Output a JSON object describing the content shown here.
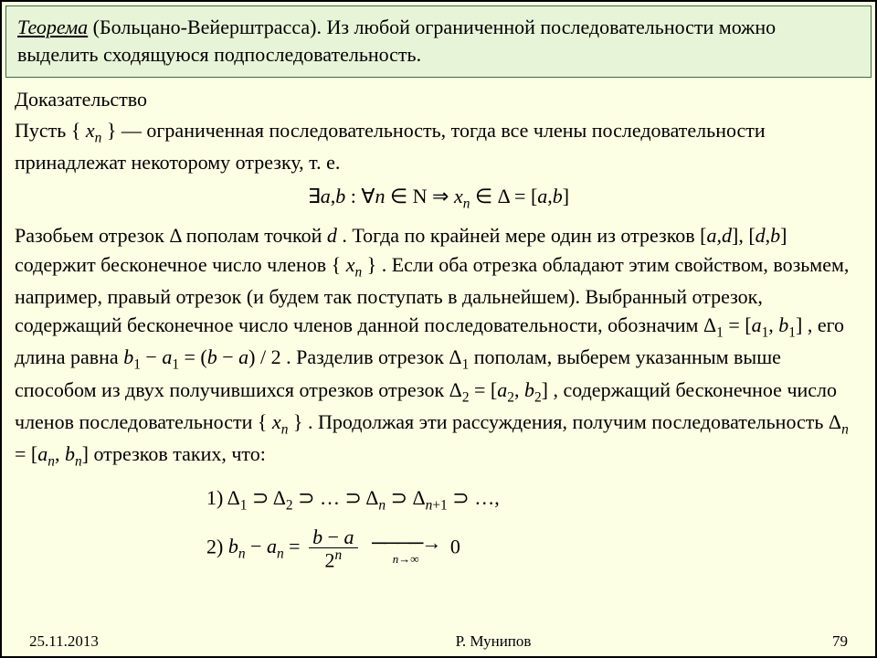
{
  "colors": {
    "slide_bg": "#fdffe4",
    "border": "#000000",
    "theorem_bg": "#e8f4d8",
    "theorem_border": "#3a6b3a",
    "text": "#000000"
  },
  "theorem": {
    "label": "Теорема",
    "name": "(Больцано-Вейерштрасса)",
    "statement_tail": ". Из любой ограниченной последовательности можно выделить сходящуюся подпоследовательность."
  },
  "proof": {
    "heading": "Доказательство",
    "p1a": "Пусть ",
    "seq_xn": "{ xₙ }",
    "p1b": " — ограниченная последовательность, тогда все члены последовательности принадлежат некоторому отрезку, т. е.",
    "formula1": "∃a,b : ∀n ∈ N ⇒ xₙ ∈ Δ = [a,b]",
    "p2a": "Разобьем отрезок ",
    "delta": "Δ",
    "p2b": " пополам точкой ",
    "d": "d",
    "p2c": " . Тогда по крайней мере один из отрезков ",
    "seg_ad": "[a,d]",
    "comma": ", ",
    "seg_db": "[d,b]",
    "p2d": " содержит бесконечное число членов ",
    "p2e": " . Если оба отрезка обладают этим свойством, возьмем, например, правый отрезок (и будем так поступать в дальнейшем). Выбранный отрезок, содержащий бесконечное число членов данной последовательности, обозначим ",
    "delta1_def": "Δ₁ = [a₁, b₁]",
    "p2f": " , его длина равна ",
    "len1": "b₁ − a₁ = (b − a) / 2",
    "p2g": " . Разделив отрезок ",
    "delta1": "Δ₁",
    "p2h": " пополам, выберем указанным выше способом из двух получившихся отрезков отрезок ",
    "delta2_def": "Δ₂ = [a₂, b₂]",
    "p2i": " , содержащий бесконечное число членов последовательности ",
    "p2j": " . Продолжая эти рассуждения, получим последовательность ",
    "deltan_def": "Δₙ = [aₙ, bₙ]",
    "p2k": " отрезков таких, что:",
    "list1_label": "1) ",
    "list1_body": "Δ₁ ⊃ Δ₂ ⊃ … ⊃ Δₙ ⊃ Δₙ₊₁ ⊃ …,",
    "list2_label": "2) ",
    "list2_lhs": "bₙ − aₙ = ",
    "list2_num": "b − a",
    "list2_den": "2ⁿ",
    "list2_arrow_under": "n→∞",
    "list2_to": " 0"
  },
  "footer": {
    "date": "25.11.2013",
    "author": "Р. Мунипов",
    "page": "79"
  }
}
